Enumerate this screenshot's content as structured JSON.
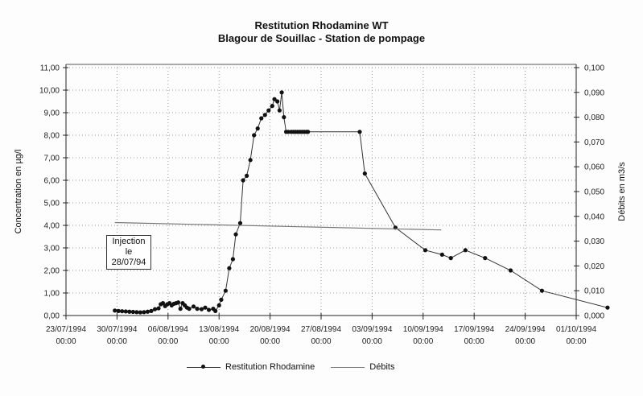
{
  "chart_data": {
    "type": "line",
    "title": "Restitution Rhodamine WT",
    "subtitle": "Blagour de Souillac - Station de pompage",
    "ylabel": "Concentration en µg/l",
    "y2label": "Débits en m3/s",
    "ylim": [
      0,
      11
    ],
    "y2lim": [
      0,
      0.1
    ],
    "grid": true,
    "legend_position": "bottom",
    "y_ticks": [
      "0,00",
      "1,00",
      "2,00",
      "3,00",
      "4,00",
      "5,00",
      "6,00",
      "7,00",
      "8,00",
      "9,00",
      "10,00",
      "11,00"
    ],
    "y2_ticks": [
      "0,000",
      "0,010",
      "0,020",
      "0,030",
      "0,040",
      "0,050",
      "0,060",
      "0,070",
      "0,080",
      "0,090",
      "0,100"
    ],
    "x_ticks": [
      {
        "date": "23/07/1994",
        "time": "00:00"
      },
      {
        "date": "30/07/1994",
        "time": "00:00"
      },
      {
        "date": "06/08/1994",
        "time": "00:00"
      },
      {
        "date": "13/08/1994",
        "time": "00:00"
      },
      {
        "date": "20/08/1994",
        "time": "00:00"
      },
      {
        "date": "27/08/1994",
        "time": "00:00"
      },
      {
        "date": "03/09/1994",
        "time": "00:00"
      },
      {
        "date": "10/09/1994",
        "time": "00:00"
      },
      {
        "date": "17/09/1994",
        "time": "00:00"
      },
      {
        "date": "24/09/1994",
        "time": "00:00"
      },
      {
        "date": "01/10/1994",
        "time": "00:00"
      }
    ],
    "x_range_days": [
      0,
      70
    ],
    "x_origin": "23/07/1994",
    "series": [
      {
        "name": "Restitution Rhodamine",
        "axis": "left",
        "marker": "dot",
        "x_days": [
          6.7,
          7.2,
          7.7,
          8.2,
          8.7,
          9.2,
          9.7,
          10.2,
          10.7,
          11.2,
          11.7,
          12.2,
          12.7,
          13.0,
          13.3,
          13.6,
          13.9,
          14.2,
          14.5,
          14.8,
          15.1,
          15.4,
          15.7,
          16.0,
          16.3,
          16.6,
          16.9,
          17.5,
          18.0,
          18.6,
          19.1,
          19.6,
          20.2,
          20.5,
          21.0,
          21.3,
          21.9,
          22.4,
          22.9,
          23.3,
          23.9,
          24.3,
          24.8,
          25.3,
          25.8,
          26.3,
          26.8,
          27.3,
          27.8,
          28.3,
          28.6,
          29.0,
          29.3,
          29.6,
          29.9,
          30.2,
          30.5,
          30.9,
          31.2,
          31.5,
          31.8,
          32.1,
          32.4,
          32.7,
          33.0,
          33.2,
          40.3,
          41.0,
          45.2,
          49.3,
          51.6,
          52.8,
          54.8,
          57.5,
          61.0,
          65.3,
          74.3
        ],
        "values": [
          0.22,
          0.2,
          0.19,
          0.18,
          0.17,
          0.16,
          0.15,
          0.14,
          0.15,
          0.17,
          0.2,
          0.28,
          0.32,
          0.5,
          0.55,
          0.42,
          0.5,
          0.55,
          0.45,
          0.52,
          0.55,
          0.58,
          0.3,
          0.55,
          0.45,
          0.35,
          0.3,
          0.4,
          0.3,
          0.28,
          0.35,
          0.25,
          0.3,
          0.2,
          0.45,
          0.7,
          1.1,
          2.1,
          2.5,
          3.6,
          4.1,
          6.0,
          6.2,
          6.9,
          8.0,
          8.3,
          8.75,
          8.9,
          9.1,
          9.3,
          9.6,
          9.5,
          9.1,
          9.9,
          8.8,
          8.15,
          8.15,
          8.15,
          8.15,
          8.15,
          8.15,
          8.15,
          8.15,
          8.15,
          8.15,
          8.15,
          8.15,
          6.3,
          3.9,
          2.9,
          2.7,
          2.55,
          2.9,
          2.55,
          2.0,
          1.1,
          0.35
        ]
      },
      {
        "name": "Débits",
        "axis": "right",
        "marker": "none",
        "x_days": [
          6.7,
          51.5
        ],
        "values": [
          0.0375,
          0.0345
        ]
      }
    ],
    "annotations": [
      {
        "text_line1": "Injection",
        "text_line2": "le 28/07/94"
      }
    ]
  }
}
